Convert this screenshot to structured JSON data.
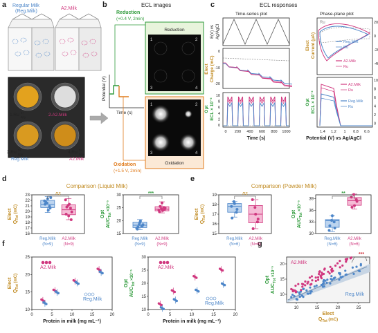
{
  "panels": {
    "a": {
      "letter": "a",
      "carton_left": [
        "Regular Milk",
        "(Reg.Milk)"
      ],
      "carton_right": "A2.Milk",
      "well_labels": {
        "w1": "1.Ru",
        "w1_sup": "2+",
        "w1_sub": "bpy",
        "w2": "2.A2.Milk",
        "w3": [
          "3.Ru",
          "Reg.Milk"
        ],
        "w3_sup": "2+",
        "w3_sub": "bpy",
        "w4": [
          "4.Ru",
          "A2.Milk"
        ],
        "w4_sup": "2+",
        "w4_sub": "bpy"
      }
    },
    "b": {
      "letter": "b",
      "title": "ECL images",
      "reduction": [
        "Reduction",
        "(+0.4 V, 2min)"
      ],
      "reduction_tag": "Reduction",
      "oxidation": [
        "Oxidation",
        "(+1.5 V, 2min)"
      ],
      "oxidation_tag": "Oxidation",
      "ylabel": "Potential (V)",
      "xlabel": "Time (s)",
      "corner_numbers": [
        "1",
        "2",
        "3",
        "4"
      ]
    },
    "c": {
      "letter": "c",
      "title": "ECL responses",
      "sub_left": "Time-series plot",
      "sub_right": "Phase-plane plot",
      "ylabel_1": [
        "E(V) vs",
        "Ag/AgCl"
      ],
      "ylabel_2": [
        "Elect",
        "Charge (mC)"
      ],
      "ylabel_3": [
        "Opt",
        "ECL × 10⁻³"
      ],
      "ylabel_4": [
        "Elect",
        "Current (μA)"
      ],
      "ylabel_5": [
        "Opt",
        "ECL × 10⁻³"
      ],
      "xlabel_left": "Time (s)",
      "xlabel_right": "Potential (V) vs Ag/AgCl",
      "charge_ticks": [
        "0",
        "-10",
        "-20"
      ],
      "ecl_ticks": [
        "10",
        "8",
        "6",
        "4",
        "2",
        "0"
      ],
      "time_ticks": [
        "0",
        "200",
        "400",
        "600",
        "800",
        "1000"
      ],
      "current_ticks": [
        "20",
        "0",
        "-20",
        "-40"
      ],
      "ecl_right_ticks": [
        "10",
        "8",
        "6",
        "4",
        "2",
        "0"
      ],
      "pot_ticks": [
        "1.4",
        "1.2",
        "1",
        "0.8",
        "0.6"
      ],
      "legend_top": [
        "Reg.Milk",
        "Ru",
        "A2.Milk",
        "Ru"
      ],
      "legend_bottom": [
        "A2.Milk",
        "Ru",
        "Reg.Milk",
        "Ru"
      ],
      "blank_label": "Ru"
    },
    "d": {
      "letter": "d",
      "title": "Comparison (Liquid Milk)",
      "ns": "ns",
      "sig": "***",
      "left_ylabel": [
        "Elect",
        "Q"
      ],
      "left_ysub": "Tot",
      "left_yunit": "(mC)",
      "left_ticks": [
        "23",
        "22",
        "21",
        "20",
        "19",
        "18",
        "17",
        "16"
      ],
      "right_ylabel": [
        "Opt",
        "AUC"
      ],
      "right_ysub": "Tot",
      "right_yunit": "×10⁻⁵",
      "right_ticks": [
        "30",
        "25",
        "20",
        "15"
      ],
      "groups": [
        {
          "label": "Reg.Milk",
          "n": "(N=9)"
        },
        {
          "label": "A2.Milk",
          "n": "(N=9)"
        }
      ]
    },
    "e": {
      "letter": "e",
      "title": "Comparison (Powder Milk)",
      "ns": "ns",
      "sig": "**",
      "left_ylabel": [
        "Elect",
        "Q"
      ],
      "left_ysub": "Tot",
      "left_yunit": "(mC)",
      "left_ticks": [
        "19",
        "18",
        "17",
        "16",
        "15"
      ],
      "right_ylabel": [
        "Opt",
        "AUC"
      ],
      "right_ysub": "Tot",
      "right_yunit": "×10⁻⁵",
      "right_ticks": [
        "39",
        "36",
        "33",
        "30"
      ],
      "groups": [
        {
          "label": "Reg.Milk",
          "n": "(N=6)"
        },
        {
          "label": "A2.Milk",
          "n": "(N=6)"
        }
      ]
    },
    "f": {
      "letter": "f",
      "left_ylabel": [
        "Elect",
        "Q"
      ],
      "left_ysub": "Tot",
      "left_yunit": "(mC)",
      "left_ticks": [
        "25",
        "20",
        "15",
        "10"
      ],
      "right_ylabel": [
        "Opt",
        "AUC"
      ],
      "right_ysub": "Tot",
      "right_yunit": "×10⁻⁵",
      "right_ticks": [
        "30",
        "25",
        "20",
        "15",
        "10"
      ],
      "xticks": [
        "0",
        "5",
        "10",
        "15",
        "20"
      ],
      "xlabel": "Protein in milk (mg mL⁻¹)",
      "a2": "A2.Milk",
      "reg": "Reg.Milk"
    },
    "g": {
      "letter": "g",
      "ylabel": [
        "Opt",
        "AUC"
      ],
      "ysub": "Tot",
      "yunit": "×10⁻⁵",
      "yticks": [
        "20",
        "15",
        "10"
      ],
      "xticks": [
        "10",
        "15",
        "20",
        "25"
      ],
      "xlabel": [
        "Elect",
        "Q"
      ],
      "xsub": "Tot",
      "xunit": "(mC)",
      "a2": "A2.Milk",
      "reg": "Reg.Milk",
      "sig": "***"
    }
  },
  "colors": {
    "reg": "#4d86c9",
    "a2": "#d0387f",
    "green": "#2e9a3a",
    "orange": "#e07b1c",
    "gold": "#c08a20",
    "pink_box": "#f5bcd6",
    "blue_box": "#bcd4ef"
  },
  "chart_data": [
    {
      "type": "box",
      "panel": "d-left",
      "categories": [
        "Reg.Milk",
        "A2.Milk"
      ],
      "ylim": [
        16,
        23
      ],
      "boxes": [
        {
          "q1": 20.7,
          "median": 21.3,
          "q3": 22.0,
          "min": 19.8,
          "max": 22.7
        },
        {
          "q1": 19.4,
          "median": 20.3,
          "q3": 21.2,
          "min": 18.5,
          "max": 22.3
        }
      ],
      "points": [
        [
          21.9,
          21.5,
          20.9,
          21.3,
          22.3,
          20.6,
          21.7,
          20.2,
          22.5
        ],
        [
          22.1,
          21.1,
          20.6,
          19.5,
          19.2,
          18.5,
          20.8,
          21.3,
          19.9
        ]
      ]
    },
    {
      "type": "box",
      "panel": "d-right",
      "categories": [
        "Reg.Milk",
        "A2.Milk"
      ],
      "ylim": [
        15,
        30
      ],
      "boxes": [
        {
          "q1": 17.3,
          "median": 18.2,
          "q3": 19.4,
          "min": 16.5,
          "max": 20.4
        },
        {
          "q1": 23.8,
          "median": 24.4,
          "q3": 25.4,
          "min": 23.0,
          "max": 27.3
        }
      ],
      "points": [
        [
          17.0,
          18.5,
          17.8,
          16.7,
          19.3,
          18.0,
          17.5,
          19.9,
          18.4
        ],
        [
          24.0,
          24.6,
          25.1,
          23.4,
          26.9,
          24.3,
          25.5,
          23.9,
          24.9
        ]
      ]
    },
    {
      "type": "box",
      "panel": "e-left",
      "categories": [
        "Reg.Milk",
        "A2.Milk"
      ],
      "ylim": [
        15,
        19
      ],
      "boxes": [
        {
          "q1": 17.2,
          "median": 17.8,
          "q3": 18.1,
          "min": 16.7,
          "max": 18.3
        },
        {
          "q1": 16.1,
          "median": 17.0,
          "q3": 17.9,
          "min": 15.5,
          "max": 18.5
        }
      ],
      "points": [
        [
          17.8,
          18.3,
          17.2,
          16.6,
          18.1,
          17.5
        ],
        [
          18.5,
          17.7,
          16.2,
          15.5,
          17.0,
          16.5
        ]
      ]
    },
    {
      "type": "box",
      "panel": "e-right",
      "categories": [
        "Reg.Milk",
        "A2.Milk"
      ],
      "ylim": [
        30,
        40
      ],
      "boxes": [
        {
          "q1": 31.6,
          "median": 33.3,
          "q3": 33.6,
          "min": 30.5,
          "max": 34.6
        },
        {
          "q1": 37.3,
          "median": 38.5,
          "q3": 39.3,
          "min": 36.3,
          "max": 40.2
        }
      ],
      "points": [
        [
          30.8,
          33.4,
          33.0,
          32.0,
          34.6,
          31.4
        ],
        [
          39.4,
          40.1,
          38.8,
          36.8,
          37.2,
          38.3
        ]
      ]
    },
    {
      "type": "scatter",
      "panel": "f-left",
      "xlim": [
        0,
        20
      ],
      "ylim": [
        10,
        25
      ],
      "series": [
        {
          "name": "A2.Milk",
          "x": [
            3,
            6,
            11,
            17
          ],
          "y": [
            12.6,
            15.4,
            18.1,
            21.4
          ]
        },
        {
          "name": "Reg.Milk",
          "x": [
            3,
            6,
            11,
            17
          ],
          "y": [
            11.8,
            14.9,
            17.6,
            20.6
          ]
        }
      ]
    },
    {
      "type": "scatter",
      "panel": "f-right",
      "xlim": [
        0,
        20
      ],
      "ylim": [
        10,
        30
      ],
      "series": [
        {
          "name": "A2.Milk",
          "x": [
            3,
            6,
            11,
            17
          ],
          "y": [
            12.0,
            17.0,
            22.4,
            25.2
          ]
        },
        {
          "name": "Reg.Milk",
          "x": [
            3,
            6,
            11,
            17
          ],
          "y": [
            10.5,
            13.6,
            17.2,
            19.6
          ]
        }
      ]
    }
  ]
}
